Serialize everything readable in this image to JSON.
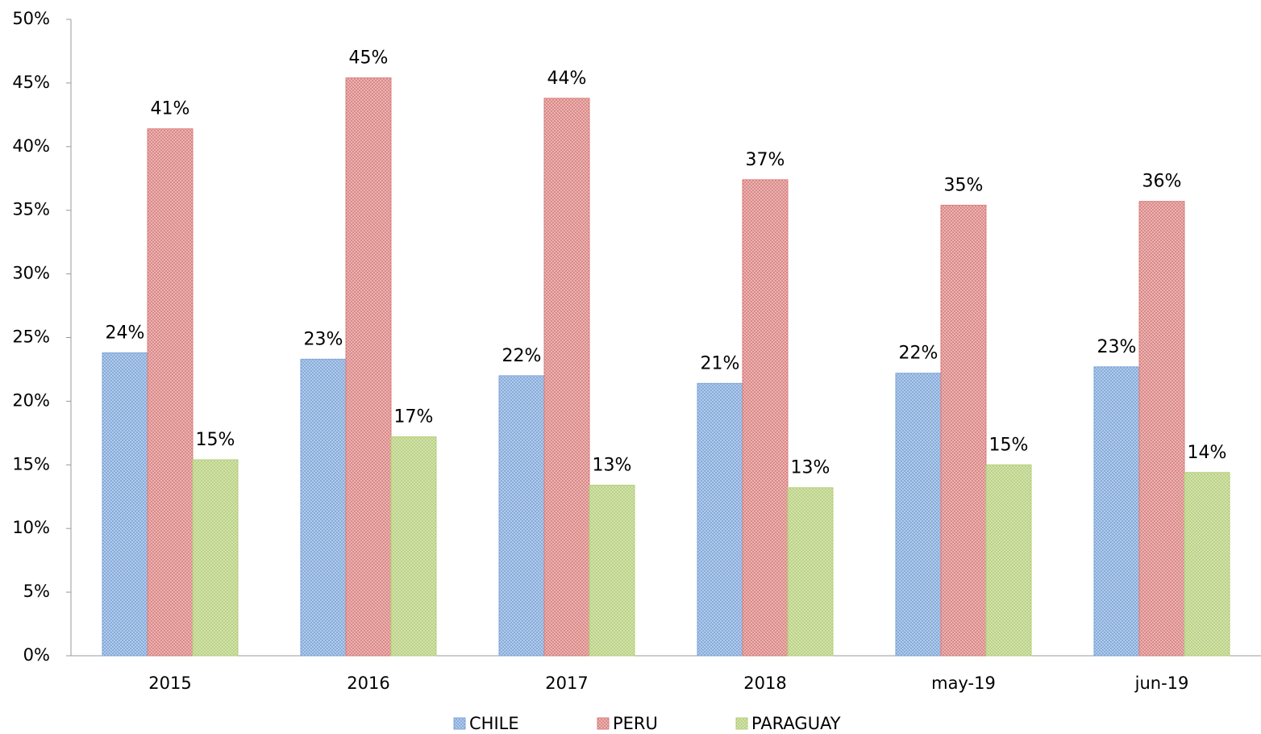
{
  "chart_data": {
    "type": "bar",
    "categories": [
      "2015",
      "2016",
      "2017",
      "2018",
      "may-19",
      "jun-19"
    ],
    "series": [
      {
        "name": "CHILE",
        "color": "#7ea6d9",
        "values": [
          23.8,
          23.3,
          22.0,
          21.4,
          22.2,
          22.7
        ],
        "value_labels": [
          "24%",
          "23%",
          "22%",
          "21%",
          "22%",
          "23%"
        ]
      },
      {
        "name": "PERU",
        "color": "#d9807e",
        "values": [
          41.4,
          45.4,
          43.8,
          37.4,
          35.4,
          35.7
        ],
        "value_labels": [
          "41%",
          "45%",
          "44%",
          "37%",
          "35%",
          "36%"
        ]
      },
      {
        "name": "PARAGUAY",
        "color": "#b5cf7a",
        "values": [
          15.4,
          17.2,
          13.4,
          13.2,
          15.0,
          14.4
        ],
        "value_labels": [
          "15%",
          "17%",
          "13%",
          "13%",
          "15%",
          "14%"
        ]
      }
    ],
    "ylim": [
      0,
      50
    ],
    "yticks": [
      {
        "value": 0,
        "label": "0%"
      },
      {
        "value": 5,
        "label": "5%"
      },
      {
        "value": 10,
        "label": "10%"
      },
      {
        "value": 15,
        "label": "15%"
      },
      {
        "value": 20,
        "label": "20%"
      },
      {
        "value": 25,
        "label": "25%"
      },
      {
        "value": 30,
        "label": "30%"
      },
      {
        "value": 35,
        "label": "35%"
      },
      {
        "value": 40,
        "label": "40%"
      },
      {
        "value": 45,
        "label": "45%"
      },
      {
        "value": 50,
        "label": "50%"
      }
    ],
    "grid": false,
    "legend": "bottom"
  }
}
